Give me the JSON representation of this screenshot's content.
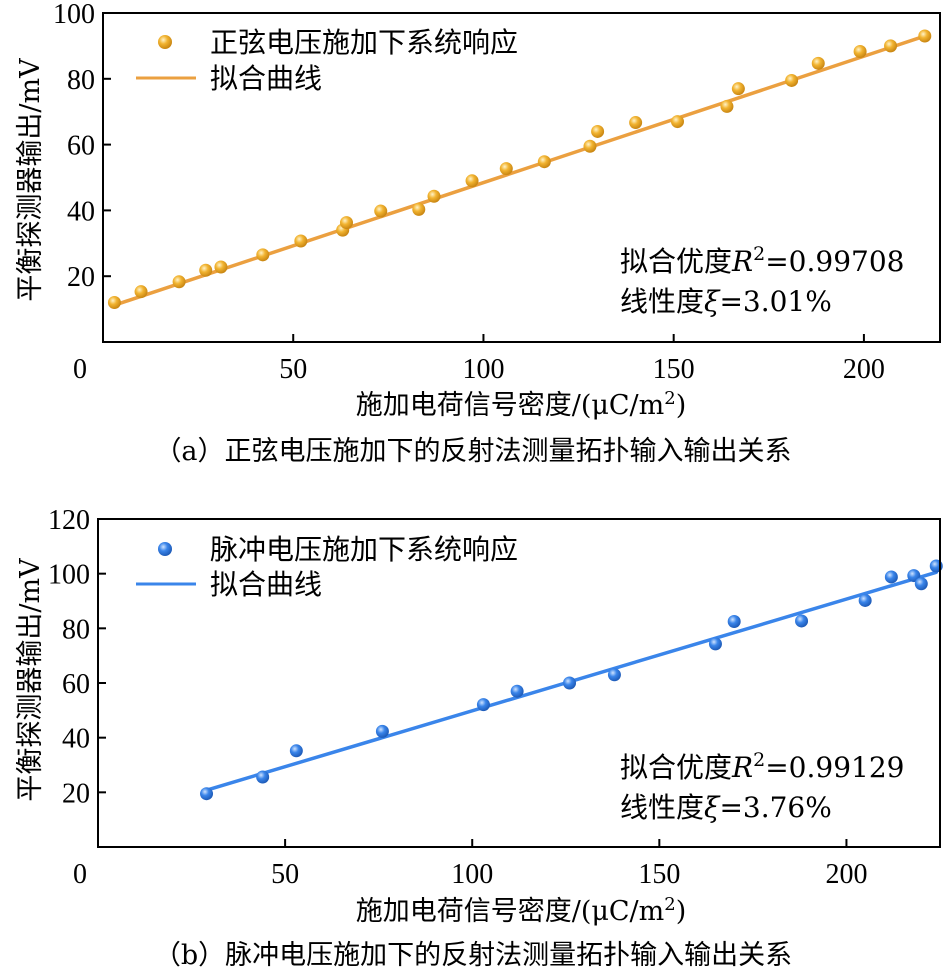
{
  "chart_data": [
    {
      "type": "scatter",
      "caption": "（a）正弦电压施加下的反射法测量拓扑输入输出关系",
      "xlabel": "施加电荷信号密度/(μC/m2)",
      "ylabel": "平衡探测器输出/mV",
      "xlim": [
        0,
        220
      ],
      "ylim": [
        0,
        100
      ],
      "xticks": [
        "0",
        "50",
        "100",
        "150",
        "200"
      ],
      "yticks": [
        "20",
        "40",
        "60",
        "80",
        "100"
      ],
      "legend": {
        "position": "top-left",
        "points_label": "正弦电压施加下系统响应",
        "fit_label": "拟合曲线"
      },
      "color": "#F0A830",
      "line_color": "#EBA040",
      "annotation": {
        "r2_prefix": "拟合优度",
        "r2_symbol": "R",
        "r2_sup": "2",
        "r2_value": "=0.99708",
        "lin_prefix": "线性度",
        "lin_symbol": "ξ",
        "lin_value": "=3.01%"
      },
      "points": [
        {
          "x": 3,
          "y": 12
        },
        {
          "x": 10,
          "y": 15.3
        },
        {
          "x": 20,
          "y": 18.3
        },
        {
          "x": 27,
          "y": 21.8
        },
        {
          "x": 31,
          "y": 22.8
        },
        {
          "x": 42,
          "y": 26.5
        },
        {
          "x": 52,
          "y": 30.7
        },
        {
          "x": 63,
          "y": 34
        },
        {
          "x": 64,
          "y": 36.3
        },
        {
          "x": 73,
          "y": 39.8
        },
        {
          "x": 83,
          "y": 40.3
        },
        {
          "x": 87,
          "y": 44.3
        },
        {
          "x": 97,
          "y": 49
        },
        {
          "x": 106,
          "y": 52.7
        },
        {
          "x": 116,
          "y": 54.8
        },
        {
          "x": 128,
          "y": 59.5
        },
        {
          "x": 130,
          "y": 64
        },
        {
          "x": 140,
          "y": 66.7
        },
        {
          "x": 151,
          "y": 67
        },
        {
          "x": 164,
          "y": 71.6
        },
        {
          "x": 167,
          "y": 77
        },
        {
          "x": 181,
          "y": 79.5
        },
        {
          "x": 188,
          "y": 84.7
        },
        {
          "x": 199,
          "y": 88.3
        },
        {
          "x": 207,
          "y": 90
        },
        {
          "x": 216,
          "y": 93
        }
      ],
      "fit": {
        "x": [
          3,
          216
        ],
        "y": [
          11.2,
          93
        ]
      }
    },
    {
      "type": "scatter",
      "caption": "（b）脉冲电压施加下的反射法测量拓扑输入输出关系",
      "xlabel": "施加电荷信号密度/(μC/m2)",
      "ylabel": "平衡探测器输出/mV",
      "xlim": [
        0,
        225
      ],
      "ylim": [
        0,
        120
      ],
      "xticks": [
        "0",
        "50",
        "100",
        "150",
        "200"
      ],
      "yticks": [
        "20",
        "40",
        "60",
        "80",
        "100",
        "120"
      ],
      "legend": {
        "position": "top-left",
        "points_label": "脉冲电压施加下系统响应",
        "fit_label": "拟合曲线"
      },
      "color": "#3A85EA",
      "line_color": "#3A85EA",
      "annotation": {
        "r2_prefix": "拟合优度",
        "r2_symbol": "R",
        "r2_sup": "2",
        "r2_value": "=0.99129",
        "lin_prefix": "线性度",
        "lin_symbol": "ξ",
        "lin_value": "=3.76%"
      },
      "points": [
        {
          "x": 29,
          "y": 19.5
        },
        {
          "x": 44,
          "y": 25.6
        },
        {
          "x": 53,
          "y": 35.2
        },
        {
          "x": 76,
          "y": 42.3
        },
        {
          "x": 103,
          "y": 52.1
        },
        {
          "x": 112,
          "y": 57
        },
        {
          "x": 126,
          "y": 60
        },
        {
          "x": 138,
          "y": 63
        },
        {
          "x": 165,
          "y": 74.3
        },
        {
          "x": 170,
          "y": 82.5
        },
        {
          "x": 188,
          "y": 82.7
        },
        {
          "x": 205,
          "y": 90.2
        },
        {
          "x": 212,
          "y": 98.8
        },
        {
          "x": 218,
          "y": 99.3
        },
        {
          "x": 220,
          "y": 96.3
        },
        {
          "x": 224,
          "y": 102.8
        }
      ],
      "fit": {
        "x": [
          29,
          224
        ],
        "y": [
          20.8,
          100.5
        ]
      }
    }
  ]
}
